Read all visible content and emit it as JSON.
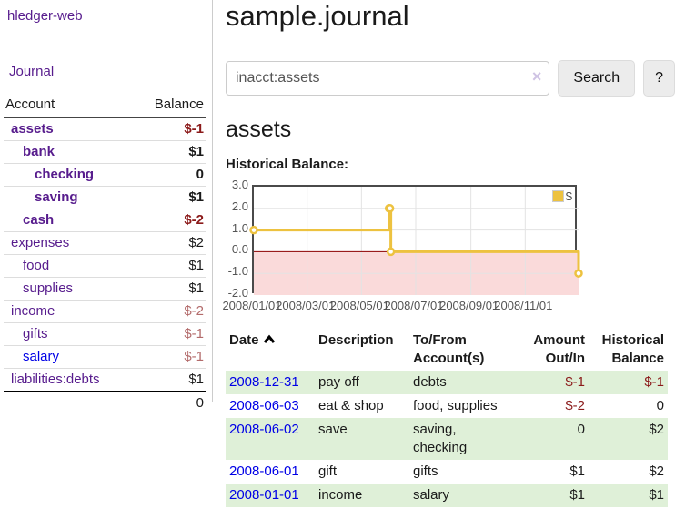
{
  "app": {
    "brand": "hledger-web"
  },
  "colors": {
    "link_visited_purple": "#571c8d",
    "link_blue": "#0000e6",
    "negative_strong": "#8b1a1a",
    "negative_muted": "#b36b6b",
    "row_green": "#dff0d8",
    "chart_line_gold": "#edc240",
    "chart_negative_fill": "#fadada",
    "chart_zero_line": "#8b0000",
    "chart_grid": "#e3e3e3",
    "chart_border": "#4a4a4a"
  },
  "sidebar": {
    "journal_link": "Journal",
    "accounts_table": {
      "headers": [
        "Account",
        "Balance"
      ],
      "rows": [
        {
          "account": "assets",
          "balance": "$-1",
          "depth": 1,
          "bold": true,
          "balance_style": "neg",
          "link_style": "visited"
        },
        {
          "account": "bank",
          "balance": "$1",
          "depth": 2,
          "bold": true,
          "balance_style": "normal",
          "link_style": "visited"
        },
        {
          "account": "checking",
          "balance": "0",
          "depth": 3,
          "bold": true,
          "balance_style": "normal",
          "link_style": "visited"
        },
        {
          "account": "saving",
          "balance": "$1",
          "depth": 3,
          "bold": true,
          "balance_style": "normal",
          "link_style": "visited"
        },
        {
          "account": "cash",
          "balance": "$-2",
          "depth": 2,
          "bold": true,
          "balance_style": "neg",
          "link_style": "visited"
        },
        {
          "account": "expenses",
          "balance": "$2",
          "depth": 1,
          "bold": false,
          "balance_style": "normal",
          "link_style": "visited"
        },
        {
          "account": "food",
          "balance": "$1",
          "depth": 2,
          "bold": false,
          "balance_style": "normal",
          "link_style": "visited"
        },
        {
          "account": "supplies",
          "balance": "$1",
          "depth": 2,
          "bold": false,
          "balance_style": "normal",
          "link_style": "visited"
        },
        {
          "account": "income",
          "balance": "$-2",
          "depth": 1,
          "bold": false,
          "balance_style": "neg-muted",
          "link_style": "visited"
        },
        {
          "account": "gifts",
          "balance": "$-1",
          "depth": 2,
          "bold": false,
          "balance_style": "neg-muted",
          "link_style": "visited"
        },
        {
          "account": "salary",
          "balance": "$-1",
          "depth": 2,
          "bold": false,
          "balance_style": "neg-muted",
          "link_style": "blue"
        },
        {
          "account": "liabilities:debts",
          "balance": "$1",
          "depth": 1,
          "bold": false,
          "balance_style": "normal",
          "link_style": "visited"
        }
      ],
      "total": "0"
    }
  },
  "header": {
    "title": "sample.journal"
  },
  "search": {
    "value": "inacct:assets",
    "clear_icon": "×",
    "button_label": "Search",
    "help_label": "?"
  },
  "account_page": {
    "heading": "assets"
  },
  "chart_data": {
    "type": "line",
    "title": "Historical Balance:",
    "step": true,
    "series": [
      {
        "name": "$",
        "color": "#edc240",
        "points": [
          {
            "date": "2008-01-01",
            "value": 1
          },
          {
            "date": "2008-06-01",
            "value": 2
          },
          {
            "date": "2008-06-02",
            "value": 2
          },
          {
            "date": "2008-06-03",
            "value": 0
          },
          {
            "date": "2008-12-31",
            "value": -1
          }
        ]
      }
    ],
    "x_ticks": [
      {
        "label": "2008/01/01",
        "day": 0
      },
      {
        "label": "2008/03/01",
        "day": 60
      },
      {
        "label": "2008/05/01",
        "day": 121
      },
      {
        "label": "2008/07/01",
        "day": 182
      },
      {
        "label": "2008/09/01",
        "day": 244
      },
      {
        "label": "2008/11/01",
        "day": 305
      }
    ],
    "y_ticks": [
      3.0,
      2.0,
      1.0,
      0.0,
      -1.0,
      -2.0
    ],
    "ylim": [
      -2,
      3
    ],
    "x_range_days": [
      0,
      365
    ],
    "grid": true,
    "legend": {
      "label": "$",
      "position": "top-right"
    }
  },
  "register_table": {
    "headers": [
      "Date",
      "Description",
      "To/From Account(s)",
      "Amount Out/In",
      "Historical Balance"
    ],
    "sorted_by": "Date",
    "sort_icon": "chevron-up",
    "rows": [
      {
        "date": "2008-12-31",
        "description": "pay off",
        "accounts": "debts",
        "amount": "$-1",
        "amount_negative": true,
        "balance": "$-1",
        "balance_negative": true,
        "green": true
      },
      {
        "date": "2008-06-03",
        "description": "eat & shop",
        "accounts": "food, supplies",
        "amount": "$-2",
        "amount_negative": true,
        "balance": "0",
        "balance_negative": false,
        "green": false
      },
      {
        "date": "2008-06-02",
        "description": "save",
        "accounts": "saving, checking",
        "amount": "0",
        "amount_negative": false,
        "balance": "$2",
        "balance_negative": false,
        "green": true
      },
      {
        "date": "2008-06-01",
        "description": "gift",
        "accounts": "gifts",
        "amount": "$1",
        "amount_negative": false,
        "balance": "$2",
        "balance_negative": false,
        "green": false
      },
      {
        "date": "2008-01-01",
        "description": "income",
        "accounts": "salary",
        "amount": "$1",
        "amount_negative": false,
        "balance": "$1",
        "balance_negative": false,
        "green": true
      }
    ]
  }
}
